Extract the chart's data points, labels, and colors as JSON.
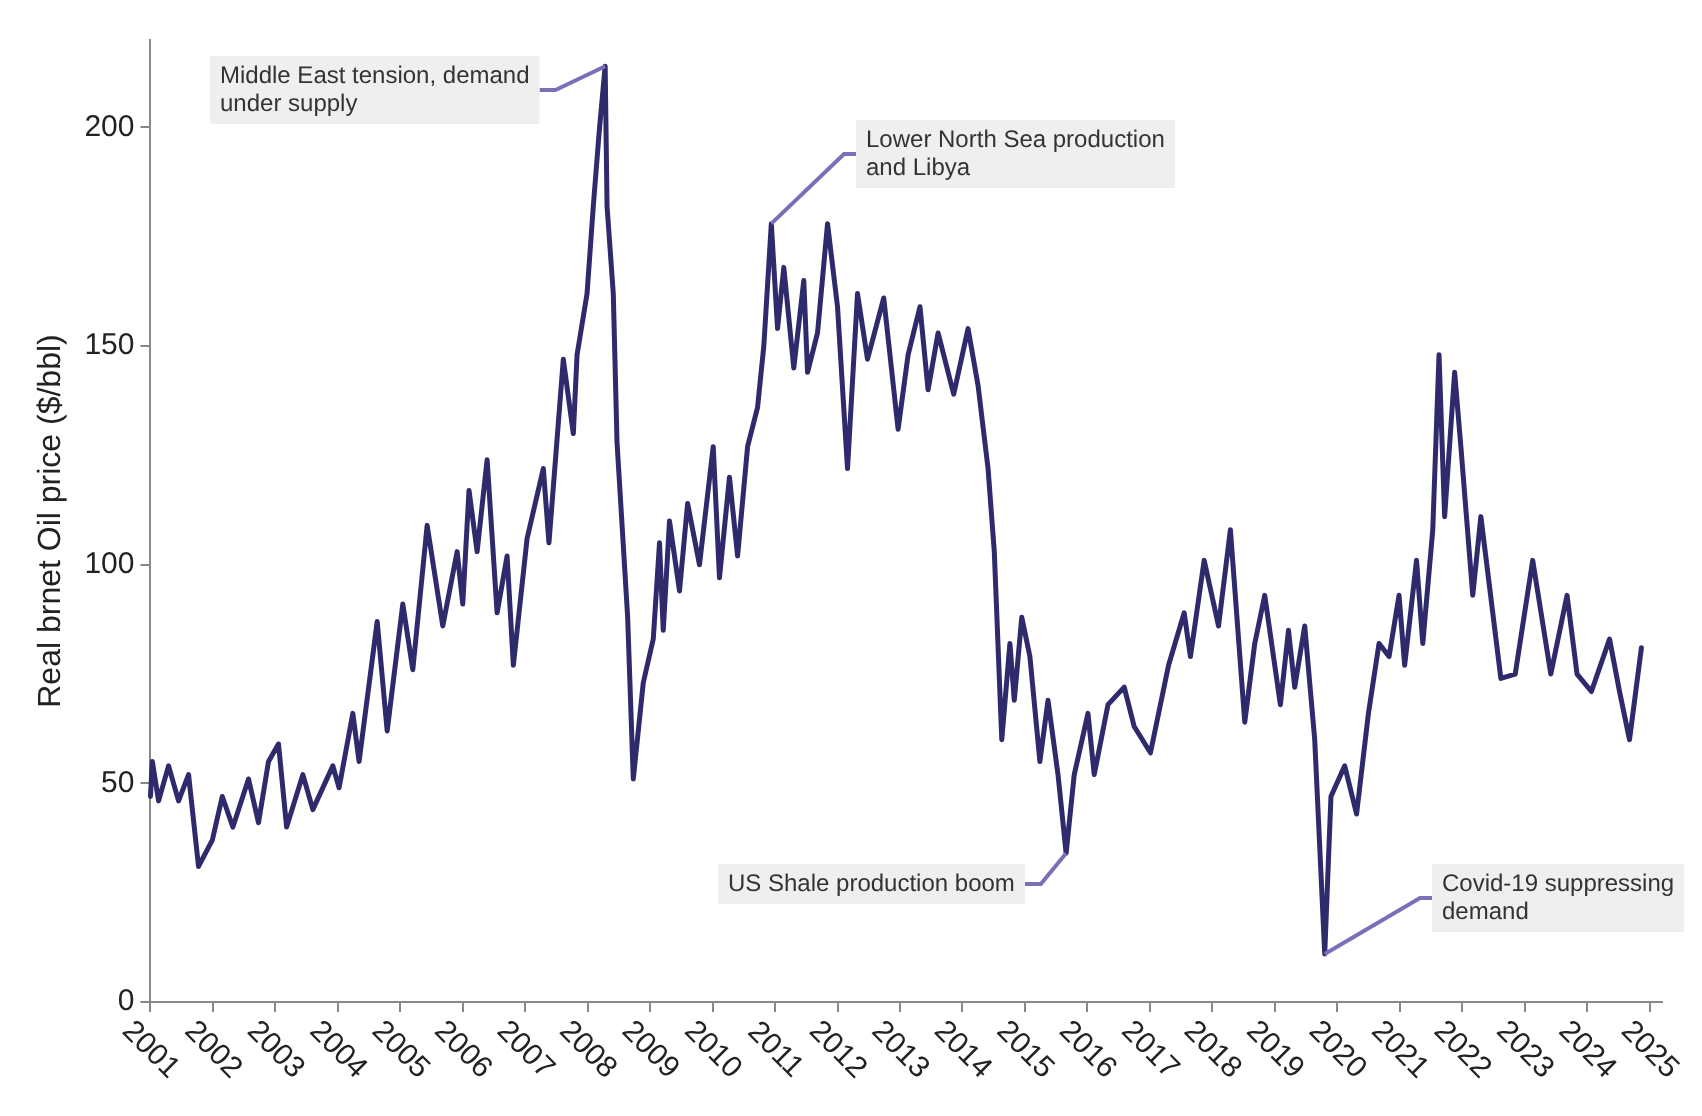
{
  "chart_data": {
    "type": "line",
    "ylabel": "Real brnet Oil price ($/bbl)",
    "xlim": [
      2001,
      2025.2
    ],
    "xticks": [
      2001,
      2002,
      2003,
      2004,
      2005,
      2006,
      2007,
      2008,
      2009,
      2010,
      2011,
      2012,
      2013,
      2014,
      2015,
      2016,
      2017,
      2018,
      2019,
      2020,
      2021,
      2022,
      2023,
      2024,
      2025
    ],
    "ylim": [
      0,
      220
    ],
    "yticks": [
      0,
      50,
      100,
      150,
      200
    ],
    "grid": false,
    "legend": false,
    "marker": "none",
    "line_style": "solid",
    "series": [
      {
        "color": "#2e2a6b",
        "x": [
          2001.0,
          2001.03,
          2001.13,
          2001.29,
          2001.45,
          2001.61,
          2001.77,
          2001.99,
          2002.15,
          2002.32,
          2002.57,
          2002.73,
          2002.89,
          2003.05,
          2003.18,
          2003.44,
          2003.6,
          2003.92,
          2004.02,
          2004.24,
          2004.34,
          2004.63,
          2004.79,
          2005.04,
          2005.2,
          2005.43,
          2005.68,
          2005.91,
          2006.0,
          2006.1,
          2006.23,
          2006.39,
          2006.55,
          2006.71,
          2006.81,
          2007.03,
          2007.29,
          2007.38,
          2007.61,
          2007.77,
          2007.83,
          2007.99,
          2008.09,
          2008.19,
          2008.28,
          2008.31,
          2008.41,
          2008.47,
          2008.64,
          2008.73,
          2008.89,
          2009.05,
          2009.15,
          2009.21,
          2009.31,
          2009.47,
          2009.6,
          2009.79,
          2010.01,
          2010.11,
          2010.27,
          2010.4,
          2010.56,
          2010.72,
          2010.82,
          2010.94,
          2011.04,
          2011.14,
          2011.3,
          2011.46,
          2011.52,
          2011.68,
          2011.84,
          2012.0,
          2012.16,
          2012.32,
          2012.48,
          2012.74,
          2012.97,
          2013.13,
          2013.32,
          2013.45,
          2013.61,
          2013.86,
          2014.09,
          2014.25,
          2014.41,
          2014.51,
          2014.63,
          2014.76,
          2014.83,
          2014.95,
          2015.08,
          2015.24,
          2015.37,
          2015.53,
          2015.66,
          2015.79,
          2016.01,
          2016.11,
          2016.33,
          2016.59,
          2016.75,
          2017.01,
          2017.3,
          2017.55,
          2017.65,
          2017.87,
          2018.1,
          2018.29,
          2018.52,
          2018.68,
          2018.84,
          2019.09,
          2019.22,
          2019.32,
          2019.48,
          2019.64,
          2019.8,
          2019.9,
          2020.12,
          2020.31,
          2020.5,
          2020.67,
          2020.83,
          2020.99,
          2021.08,
          2021.27,
          2021.37,
          2021.53,
          2021.63,
          2021.72,
          2021.88,
          2021.98,
          2022.17,
          2022.3,
          2022.62,
          2022.85,
          2023.13,
          2023.42,
          2023.68,
          2023.84,
          2024.07,
          2024.36,
          2024.52,
          2024.68,
          2024.87
        ],
        "values": [
          47,
          55,
          46,
          54,
          46,
          52,
          31,
          37,
          47,
          40,
          51,
          41,
          55,
          59,
          40,
          52,
          44,
          54,
          49,
          66,
          55,
          87,
          62,
          91,
          76,
          109,
          86,
          103,
          91,
          117,
          103,
          124,
          89,
          102,
          77,
          106,
          122,
          105,
          147,
          130,
          148,
          162,
          182,
          200,
          214,
          182,
          162,
          128,
          88,
          51,
          73,
          83,
          105,
          85,
          110,
          94,
          114,
          100,
          127,
          97,
          120,
          102,
          127,
          136,
          150,
          178,
          154,
          168,
          145,
          165,
          144,
          153,
          178,
          159,
          122,
          162,
          147,
          161,
          131,
          148,
          159,
          140,
          153,
          139,
          154,
          141,
          122,
          103,
          60,
          82,
          69,
          88,
          79,
          55,
          69,
          52,
          34,
          52,
          66,
          52,
          68,
          72,
          63,
          57,
          77,
          89,
          79,
          101,
          86,
          108,
          64,
          82,
          93,
          68,
          85,
          72,
          86,
          60,
          11,
          47,
          54,
          43,
          66,
          82,
          79,
          93,
          77,
          101,
          82,
          108,
          148,
          111,
          144,
          127,
          93,
          111,
          74,
          75,
          101,
          75,
          93,
          75,
          71,
          83,
          71,
          60,
          81
        ]
      }
    ],
    "annotations": [
      {
        "text": "Middle East tension, demand under supply",
        "x": 2008.28,
        "y": 214
      },
      {
        "text": "Lower North Sea production and Libya",
        "x": 2010.94,
        "y": 178
      },
      {
        "text": "US Shale production boom",
        "x": 2015.66,
        "y": 34
      },
      {
        "text": "Covid-19 suppressing demand",
        "x": 2019.8,
        "y": 11
      }
    ]
  }
}
